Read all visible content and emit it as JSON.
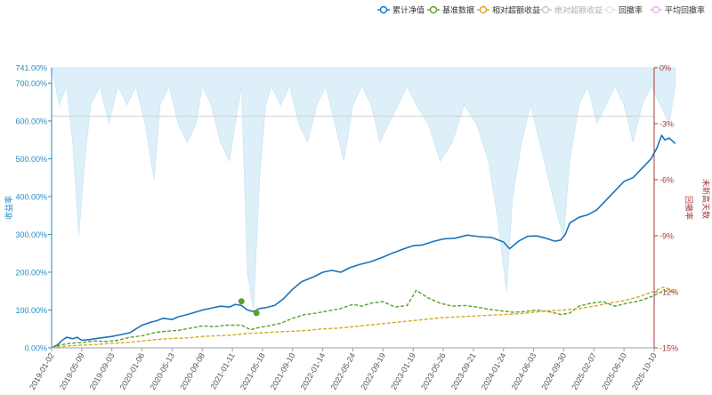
{
  "chart_data": {
    "type": "line",
    "title": "",
    "legend": {
      "placement": "top-right",
      "items": [
        {
          "label": "累计净值",
          "color": "#1a73b8",
          "style": "solid",
          "active": true
        },
        {
          "label": "基准数据",
          "color": "#5aa02c",
          "style": "dashed",
          "active": true
        },
        {
          "label": "相对超额收益",
          "color": "#d9a820",
          "style": "dashed",
          "active": true
        },
        {
          "label": "绝对超额收益",
          "color": "#c7c7c7",
          "style": "solid",
          "active": false
        },
        {
          "label": "回撤率",
          "color": "#d7ecf7",
          "style": "area",
          "active": true
        },
        {
          "label": "平均回撤率",
          "color": "#e6b3e6",
          "style": "solid",
          "active": true
        }
      ]
    },
    "y_left": {
      "label": "收益率",
      "range": [
        0,
        741
      ],
      "ticks": [
        "0.00%",
        "100.00%",
        "200.00%",
        "300.00%",
        "400.00%",
        "500.00%",
        "600.00%",
        "700.00%"
      ],
      "top_label": "741.00%",
      "color": "#2a8bbf"
    },
    "y_right": {
      "label": "回撤率",
      "secondary_label": "未新高天数",
      "range": [
        -15,
        0
      ],
      "ticks": [
        "0%",
        "-3%",
        "-6%",
        "-9%",
        "-12%",
        "-15%"
      ],
      "color": "#a23a3a"
    },
    "x_axis": {
      "ticks": [
        "2019-01-02",
        "2019-05-09",
        "2019-09-03",
        "2020-01-06",
        "2020-05-13",
        "2020-09-08",
        "2021-01-11",
        "2021-05-18",
        "2021-09-10",
        "2022-01-14",
        "2022-05-24",
        "2022-09-19",
        "2023-01-19",
        "2023-05-26",
        "2023-09-21",
        "2024-01-24",
        "2024-06-03",
        "2024-09-30",
        "2025-02-07",
        "2025-06-10",
        "2025-10-10"
      ]
    },
    "grid": false,
    "reference_lines": [
      {
        "axis": "right",
        "value": -2.6,
        "color": "#d0d0d0"
      }
    ],
    "markers": [
      {
        "series": "基准数据",
        "x": 6.3,
        "value": 123
      },
      {
        "series": "基准数据",
        "x": 6.8,
        "value": 92
      }
    ],
    "series": [
      {
        "name": "累计净值",
        "axis": "left",
        "color": "#1a73b8",
        "points": [
          [
            0,
            0
          ],
          [
            0.2,
            8
          ],
          [
            0.35,
            20
          ],
          [
            0.5,
            28
          ],
          [
            0.7,
            24
          ],
          [
            0.85,
            28
          ],
          [
            1,
            20
          ],
          [
            1.3,
            22
          ],
          [
            1.5,
            25
          ],
          [
            1.8,
            28
          ],
          [
            2,
            30
          ],
          [
            2.3,
            35
          ],
          [
            2.6,
            40
          ],
          [
            2.8,
            50
          ],
          [
            3,
            60
          ],
          [
            3.3,
            68
          ],
          [
            3.5,
            72
          ],
          [
            3.7,
            78
          ],
          [
            4,
            75
          ],
          [
            4.2,
            82
          ],
          [
            4.5,
            88
          ],
          [
            4.8,
            95
          ],
          [
            5,
            100
          ],
          [
            5.3,
            105
          ],
          [
            5.6,
            110
          ],
          [
            5.9,
            108
          ],
          [
            6.1,
            115
          ],
          [
            6.3,
            112
          ],
          [
            6.5,
            100
          ],
          [
            6.7,
            96
          ],
          [
            6.9,
            104
          ],
          [
            7.1,
            106
          ],
          [
            7.4,
            112
          ],
          [
            7.7,
            130
          ],
          [
            8,
            155
          ],
          [
            8.3,
            175
          ],
          [
            8.7,
            188
          ],
          [
            9,
            200
          ],
          [
            9.3,
            205
          ],
          [
            9.6,
            200
          ],
          [
            9.9,
            212
          ],
          [
            10.2,
            220
          ],
          [
            10.6,
            228
          ],
          [
            11,
            240
          ],
          [
            11.3,
            250
          ],
          [
            11.7,
            262
          ],
          [
            12,
            270
          ],
          [
            12.3,
            272
          ],
          [
            12.7,
            282
          ],
          [
            13,
            288
          ],
          [
            13.4,
            290
          ],
          [
            13.8,
            298
          ],
          [
            14.2,
            294
          ],
          [
            14.6,
            292
          ],
          [
            15,
            280
          ],
          [
            15.2,
            262
          ],
          [
            15.5,
            282
          ],
          [
            15.8,
            295
          ],
          [
            16.1,
            296
          ],
          [
            16.4,
            290
          ],
          [
            16.7,
            282
          ],
          [
            16.9,
            285
          ],
          [
            17.05,
            300
          ],
          [
            17.2,
            330
          ],
          [
            17.5,
            345
          ],
          [
            17.8,
            352
          ],
          [
            18.1,
            365
          ],
          [
            18.4,
            390
          ],
          [
            18.7,
            415
          ],
          [
            19,
            440
          ],
          [
            19.3,
            450
          ],
          [
            19.6,
            475
          ],
          [
            19.9,
            500
          ],
          [
            20.1,
            530
          ],
          [
            20.25,
            562
          ],
          [
            20.35,
            550
          ],
          [
            20.5,
            555
          ],
          [
            20.7,
            540
          ]
        ]
      },
      {
        "name": "基准数据",
        "axis": "left",
        "color": "#5aa02c",
        "points": [
          [
            0,
            0
          ],
          [
            0.3,
            8
          ],
          [
            0.6,
            12
          ],
          [
            1,
            14
          ],
          [
            1.4,
            18
          ],
          [
            1.8,
            17
          ],
          [
            2.2,
            20
          ],
          [
            2.6,
            28
          ],
          [
            3,
            32
          ],
          [
            3.4,
            40
          ],
          [
            3.8,
            44
          ],
          [
            4.2,
            46
          ],
          [
            4.6,
            52
          ],
          [
            5,
            58
          ],
          [
            5.4,
            56
          ],
          [
            5.8,
            60
          ],
          [
            6.3,
            60
          ],
          [
            6.6,
            48
          ],
          [
            6.9,
            54
          ],
          [
            7.2,
            58
          ],
          [
            7.6,
            65
          ],
          [
            8,
            78
          ],
          [
            8.4,
            88
          ],
          [
            8.8,
            92
          ],
          [
            9.2,
            98
          ],
          [
            9.6,
            104
          ],
          [
            10,
            115
          ],
          [
            10.3,
            110
          ],
          [
            10.6,
            118
          ],
          [
            11,
            122
          ],
          [
            11.4,
            108
          ],
          [
            11.8,
            112
          ],
          [
            12.1,
            152
          ],
          [
            12.5,
            132
          ],
          [
            12.9,
            118
          ],
          [
            13.3,
            110
          ],
          [
            13.7,
            112
          ],
          [
            14.1,
            108
          ],
          [
            14.5,
            102
          ],
          [
            14.9,
            98
          ],
          [
            15.3,
            94
          ],
          [
            15.7,
            96
          ],
          [
            16.1,
            100
          ],
          [
            16.5,
            96
          ],
          [
            16.9,
            88
          ],
          [
            17.2,
            92
          ],
          [
            17.5,
            110
          ],
          [
            17.9,
            118
          ],
          [
            18.3,
            122
          ],
          [
            18.7,
            110
          ],
          [
            19.1,
            118
          ],
          [
            19.5,
            124
          ],
          [
            19.9,
            135
          ],
          [
            20.3,
            150
          ],
          [
            20.7,
            148
          ]
        ]
      },
      {
        "name": "相对超额收益",
        "axis": "left",
        "color": "#d9a820",
        "points": [
          [
            0,
            0
          ],
          [
            0.5,
            5
          ],
          [
            1,
            7
          ],
          [
            1.5,
            9
          ],
          [
            2,
            12
          ],
          [
            2.5,
            14
          ],
          [
            3,
            18
          ],
          [
            3.5,
            22
          ],
          [
            4,
            25
          ],
          [
            4.5,
            26
          ],
          [
            5,
            30
          ],
          [
            5.5,
            32
          ],
          [
            6,
            34
          ],
          [
            6.5,
            38
          ],
          [
            7,
            40
          ],
          [
            7.5,
            42
          ],
          [
            8,
            44
          ],
          [
            8.5,
            46
          ],
          [
            9,
            50
          ],
          [
            9.5,
            52
          ],
          [
            10,
            56
          ],
          [
            10.5,
            60
          ],
          [
            11,
            64
          ],
          [
            11.5,
            68
          ],
          [
            12,
            72
          ],
          [
            12.5,
            76
          ],
          [
            13,
            80
          ],
          [
            13.5,
            82
          ],
          [
            14,
            84
          ],
          [
            14.5,
            86
          ],
          [
            15,
            88
          ],
          [
            15.5,
            90
          ],
          [
            16,
            94
          ],
          [
            16.5,
            98
          ],
          [
            17,
            100
          ],
          [
            17.5,
            104
          ],
          [
            18,
            110
          ],
          [
            18.5,
            118
          ],
          [
            19,
            125
          ],
          [
            19.5,
            135
          ],
          [
            20,
            150
          ],
          [
            20.3,
            160
          ],
          [
            20.7,
            152
          ]
        ]
      },
      {
        "name": "回撤率",
        "axis": "right",
        "color": "#d7ecf7",
        "type": "area",
        "points": [
          [
            0,
            0
          ],
          [
            0.25,
            -2
          ],
          [
            0.5,
            -1
          ],
          [
            0.7,
            -4
          ],
          [
            0.9,
            -9
          ],
          [
            1.1,
            -5
          ],
          [
            1.3,
            -2
          ],
          [
            1.6,
            -1
          ],
          [
            1.9,
            -3
          ],
          [
            2.2,
            -1
          ],
          [
            2.5,
            -2
          ],
          [
            2.8,
            -1
          ],
          [
            3.1,
            -3
          ],
          [
            3.4,
            -6
          ],
          [
            3.6,
            -2
          ],
          [
            3.9,
            -1
          ],
          [
            4.2,
            -3
          ],
          [
            4.5,
            -4
          ],
          [
            4.8,
            -3
          ],
          [
            5,
            -1
          ],
          [
            5.3,
            -2
          ],
          [
            5.6,
            -4
          ],
          [
            5.9,
            -5
          ],
          [
            6.1,
            -3
          ],
          [
            6.3,
            -1
          ],
          [
            6.5,
            -11
          ],
          [
            6.7,
            -13
          ],
          [
            6.9,
            -6
          ],
          [
            7.1,
            -2
          ],
          [
            7.3,
            -1
          ],
          [
            7.6,
            -2
          ],
          [
            7.9,
            -1
          ],
          [
            8.2,
            -3
          ],
          [
            8.5,
            -4
          ],
          [
            8.8,
            -2
          ],
          [
            9.1,
            -1
          ],
          [
            9.4,
            -3
          ],
          [
            9.7,
            -5
          ],
          [
            10,
            -2
          ],
          [
            10.3,
            -1
          ],
          [
            10.6,
            -2
          ],
          [
            10.9,
            -4
          ],
          [
            11.2,
            -3
          ],
          [
            11.5,
            -2
          ],
          [
            11.8,
            -1
          ],
          [
            12.1,
            -2
          ],
          [
            12.5,
            -3
          ],
          [
            12.9,
            -5
          ],
          [
            13.3,
            -4
          ],
          [
            13.7,
            -2
          ],
          [
            14.1,
            -3
          ],
          [
            14.5,
            -5
          ],
          [
            14.8,
            -8
          ],
          [
            15.1,
            -12
          ],
          [
            15.3,
            -7
          ],
          [
            15.6,
            -4
          ],
          [
            15.9,
            -2
          ],
          [
            16.2,
            -4
          ],
          [
            16.5,
            -6
          ],
          [
            16.8,
            -8
          ],
          [
            17,
            -9
          ],
          [
            17.2,
            -5
          ],
          [
            17.5,
            -2
          ],
          [
            17.8,
            -1
          ],
          [
            18.1,
            -3
          ],
          [
            18.4,
            -2
          ],
          [
            18.7,
            -1
          ],
          [
            19,
            -2
          ],
          [
            19.3,
            -4
          ],
          [
            19.6,
            -2
          ],
          [
            19.9,
            -1
          ],
          [
            20.2,
            -2
          ],
          [
            20.5,
            -3
          ],
          [
            20.7,
            -1
          ]
        ]
      }
    ]
  }
}
